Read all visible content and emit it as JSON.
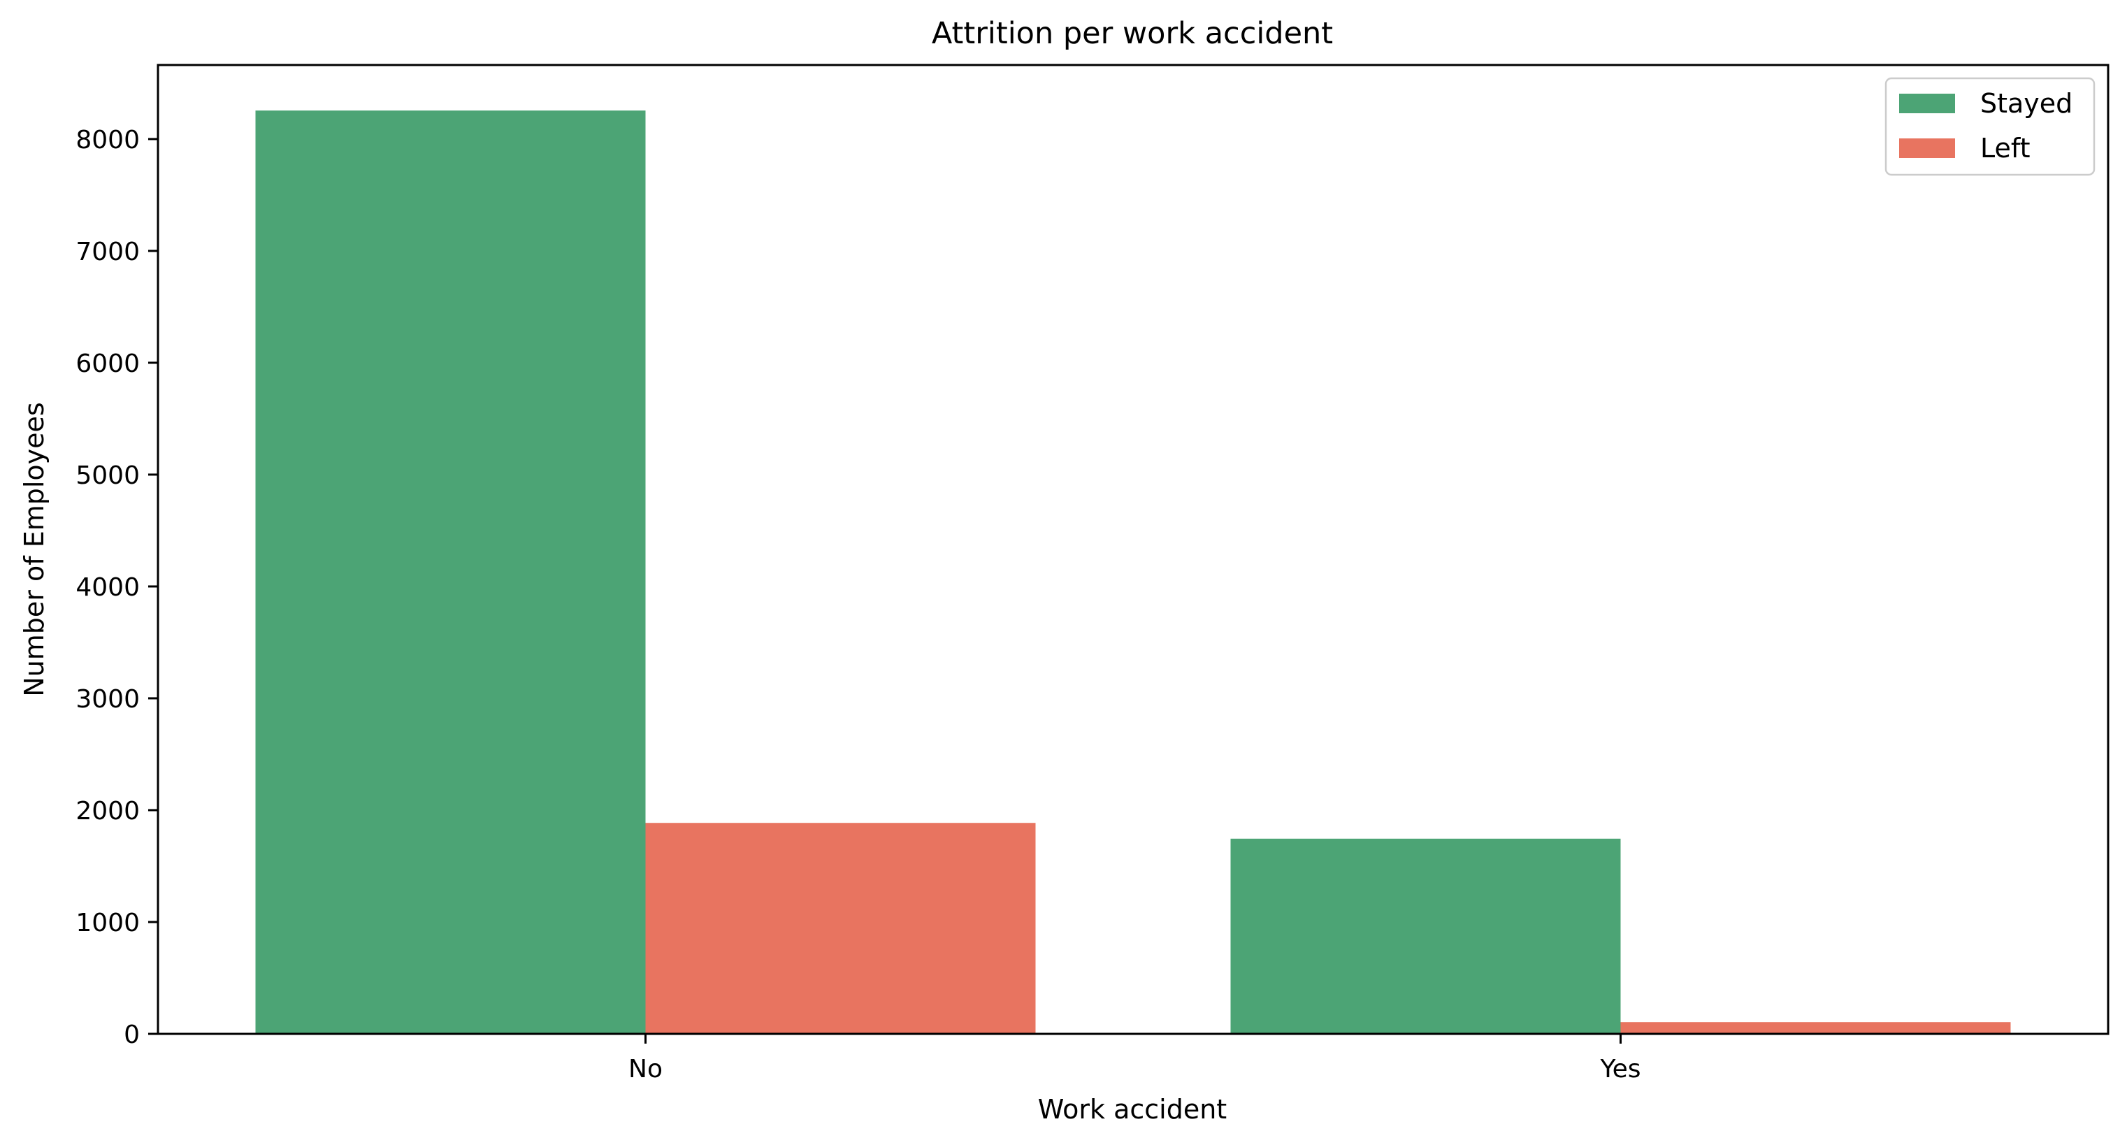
{
  "chart_data": {
    "type": "bar",
    "title": "Attrition per work accident",
    "xlabel": "Work accident",
    "ylabel": "Number of Employees",
    "categories": [
      "No",
      "Yes"
    ],
    "series": [
      {
        "name": "Stayed",
        "color": "#4ca475",
        "values": [
          8255,
          1745
        ]
      },
      {
        "name": "Left",
        "color": "#e87460",
        "values": [
          1886,
          105
        ]
      }
    ],
    "ylim": [
      0,
      8662
    ],
    "yticks": [
      "0",
      "1000",
      "2000",
      "3000",
      "4000",
      "5000",
      "6000",
      "7000",
      "8000"
    ],
    "grid": false,
    "legend": "top-right"
  }
}
